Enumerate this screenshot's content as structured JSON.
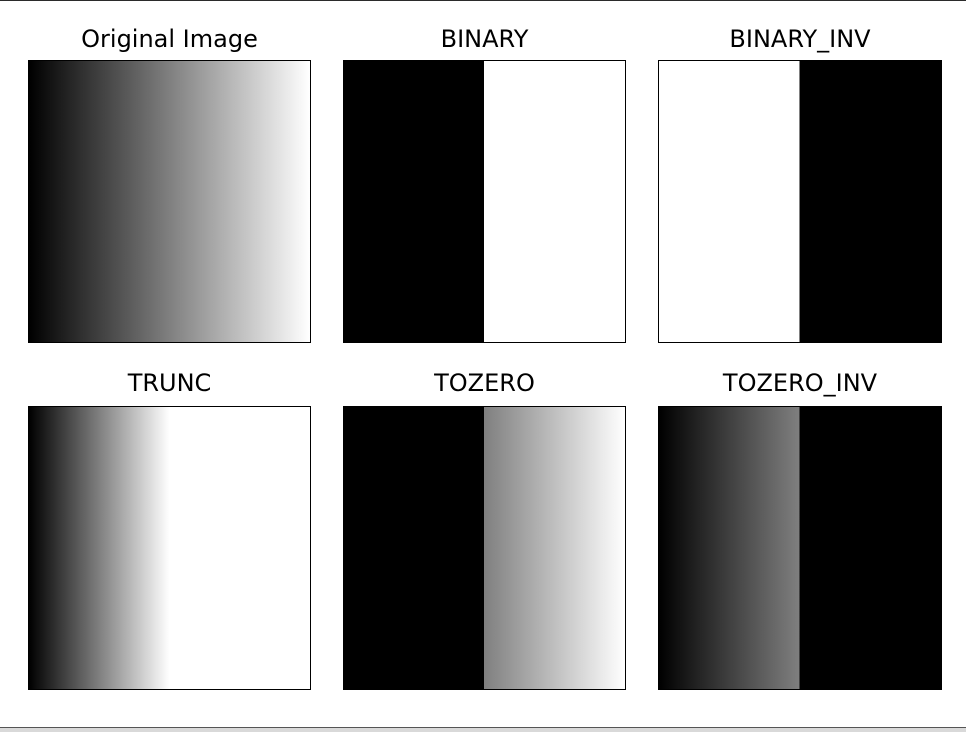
{
  "figure": {
    "panels": [
      {
        "id": "original",
        "title": "Original Image",
        "mode": "original",
        "threshold": 127
      },
      {
        "id": "binary",
        "title": "BINARY",
        "mode": "binary",
        "threshold": 127
      },
      {
        "id": "binary_inv",
        "title": "BINARY_INV",
        "mode": "binary_inv",
        "threshold": 127
      },
      {
        "id": "trunc",
        "title": "TRUNC",
        "mode": "trunc",
        "threshold": 127
      },
      {
        "id": "tozero",
        "title": "TOZERO",
        "mode": "tozero",
        "threshold": 127
      },
      {
        "id": "tozero_inv",
        "title": "TOZERO_INV",
        "mode": "tozero_inv",
        "threshold": 127
      }
    ]
  },
  "colors": {
    "background": "#ffffff",
    "frame": "#000000"
  }
}
